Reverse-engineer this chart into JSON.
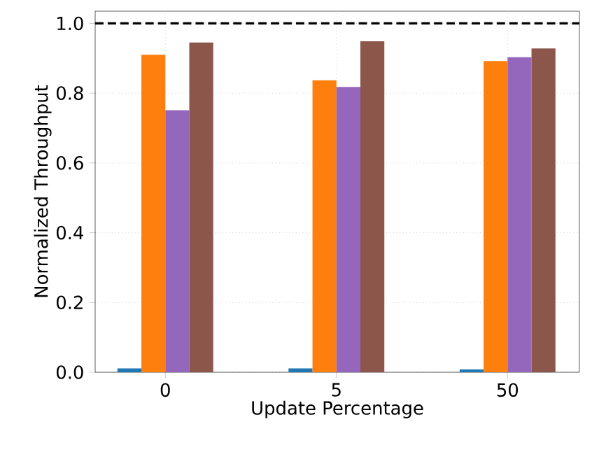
{
  "chart_data": {
    "type": "bar",
    "xlabel": "Update Percentage",
    "ylabel": "Normalized Throughput",
    "categories": [
      "0",
      "5",
      "50"
    ],
    "series": [
      {
        "color": "#1f77b4",
        "values": [
          0.011,
          0.011,
          0.008
        ]
      },
      {
        "color": "#ff7f0e",
        "values": [
          0.91,
          0.837,
          0.892
        ]
      },
      {
        "color": "#9467bd",
        "values": [
          0.751,
          0.818,
          0.903
        ]
      },
      {
        "color": "#8c564b",
        "values": [
          0.945,
          0.949,
          0.928
        ]
      }
    ],
    "ylim": [
      0,
      1.035
    ],
    "yticks": [
      {
        "value": 0,
        "label": "0.0"
      },
      {
        "value": 0.2,
        "label": "0.2"
      },
      {
        "value": 0.4,
        "label": "0.4"
      },
      {
        "value": 0.6,
        "label": "0.6"
      },
      {
        "value": 0.8,
        "label": "0.8"
      },
      {
        "value": 1.0,
        "label": "1.0"
      }
    ],
    "grid": true,
    "ref_lines": [
      {
        "axis": "y",
        "value": 1.0,
        "color": "#000000",
        "line_style": "dashed"
      }
    ]
  }
}
